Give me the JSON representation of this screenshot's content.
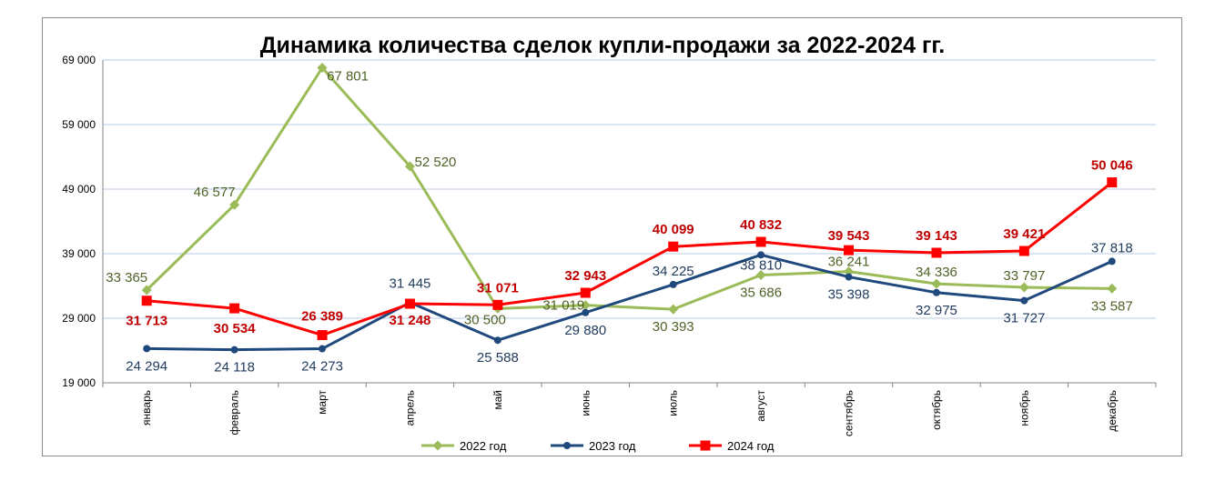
{
  "chart_data": {
    "type": "line",
    "title": "Динамика количества сделок купли-продажи за 2022-2024 гг.",
    "categories": [
      "январь",
      "февраль",
      "март",
      "апрель",
      "май",
      "июнь",
      "июль",
      "август",
      "сентябрь",
      "октябрь",
      "ноябрь",
      "декабрь"
    ],
    "y_ticks": [
      "19 000",
      "29 000",
      "39 000",
      "49 000",
      "59 000",
      "69 000"
    ],
    "ylim": [
      19000,
      69000
    ],
    "grid": "horizontal",
    "legend_position": "bottom",
    "series": [
      {
        "name": "2022 год",
        "color": "#9bbb59",
        "marker": "diamond",
        "values": [
          33365,
          46577,
          67801,
          52520,
          30500,
          31019,
          30393,
          35686,
          36241,
          34336,
          33797,
          33587
        ],
        "labels": [
          "33 365",
          "46 577",
          "67 801",
          "52 520",
          "30 500",
          "31 019",
          "30 393",
          "35 686",
          "36 241",
          "34 336",
          "33 797",
          "33 587"
        ]
      },
      {
        "name": "2023 год",
        "color": "#1f497d",
        "marker": "circle",
        "values": [
          24294,
          24118,
          24273,
          31445,
          25588,
          29880,
          34225,
          38810,
          35398,
          32975,
          31727,
          37818
        ],
        "labels": [
          "24 294",
          "24 118",
          "24 273",
          "31 445",
          "25 588",
          "29 880",
          "34 225",
          "38 810",
          "35 398",
          "32 975",
          "31 727",
          "37 818"
        ]
      },
      {
        "name": "2024 год",
        "color": "#ff0000",
        "label_color": "#c00000",
        "marker": "square",
        "values": [
          31713,
          30534,
          26389,
          31248,
          31071,
          32943,
          40099,
          40832,
          39543,
          39143,
          39421,
          50046
        ],
        "labels": [
          "31 713",
          "30 534",
          "26 389",
          "31 248",
          "31 071",
          "32 943",
          "40 099",
          "40 832",
          "39 543",
          "39 143",
          "39 421",
          "50 046"
        ]
      }
    ]
  }
}
